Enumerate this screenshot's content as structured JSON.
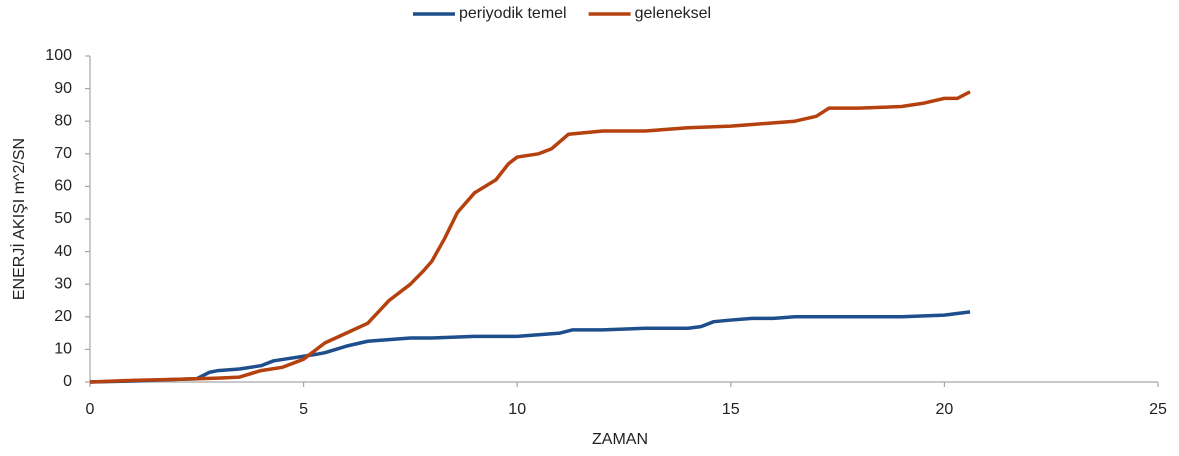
{
  "chart_data": {
    "type": "line",
    "xlabel": "ZAMAN",
    "ylabel": "ENERJİ  AKIŞI m^2/SN",
    "xlim": [
      0,
      25
    ],
    "xticks": [
      0,
      5,
      10,
      15,
      20,
      25
    ],
    "ylim": [
      0,
      100
    ],
    "yticks": [
      0,
      10,
      20,
      30,
      40,
      50,
      60,
      70,
      80,
      90,
      100
    ],
    "grid": false,
    "legend": "top",
    "series": [
      {
        "name": "periyodik temel",
        "color": "#1f4e8c",
        "x": [
          0,
          1,
          2,
          2.5,
          2.8,
          3,
          3.5,
          4,
          4.3,
          4.8,
          5.3,
          5.5,
          6,
          6.5,
          7,
          7.5,
          8,
          9,
          10,
          11,
          11.3,
          12,
          13,
          14,
          14.3,
          14.6,
          15,
          15.5,
          16,
          16.5,
          17,
          18,
          19,
          20,
          20.6
        ],
        "values": [
          0,
          0.3,
          0.8,
          1,
          3,
          3.5,
          4,
          5,
          6.5,
          7.5,
          8.5,
          9,
          11,
          12.5,
          13,
          13.5,
          13.5,
          14,
          14,
          15,
          16,
          16,
          16.5,
          16.5,
          17,
          18.5,
          19,
          19.5,
          19.5,
          20,
          20,
          20,
          20,
          20.5,
          21.5
        ]
      },
      {
        "name": "geleneksel",
        "color": "#b5410f",
        "x": [
          0,
          1,
          2,
          2.5,
          3,
          3.5,
          4,
          4.5,
          5,
          5.3,
          5.5,
          6,
          6.5,
          7,
          7.5,
          7.8,
          8,
          8.3,
          8.6,
          9,
          9.5,
          9.8,
          10,
          10.5,
          10.8,
          11.2,
          12,
          13,
          14,
          15,
          15.5,
          16,
          16.5,
          17,
          17.3,
          18,
          19,
          19.5,
          20,
          20.3,
          20.6
        ],
        "values": [
          0,
          0.5,
          0.8,
          1,
          1.2,
          1.5,
          3.5,
          4.5,
          7,
          10,
          12,
          15,
          18,
          25,
          30,
          34,
          37,
          44,
          52,
          58,
          62,
          67,
          69,
          70,
          71.5,
          76,
          77,
          77,
          78,
          78.5,
          79,
          79.5,
          80,
          81.5,
          84,
          84,
          84.5,
          85.5,
          87,
          87,
          89
        ]
      }
    ]
  }
}
